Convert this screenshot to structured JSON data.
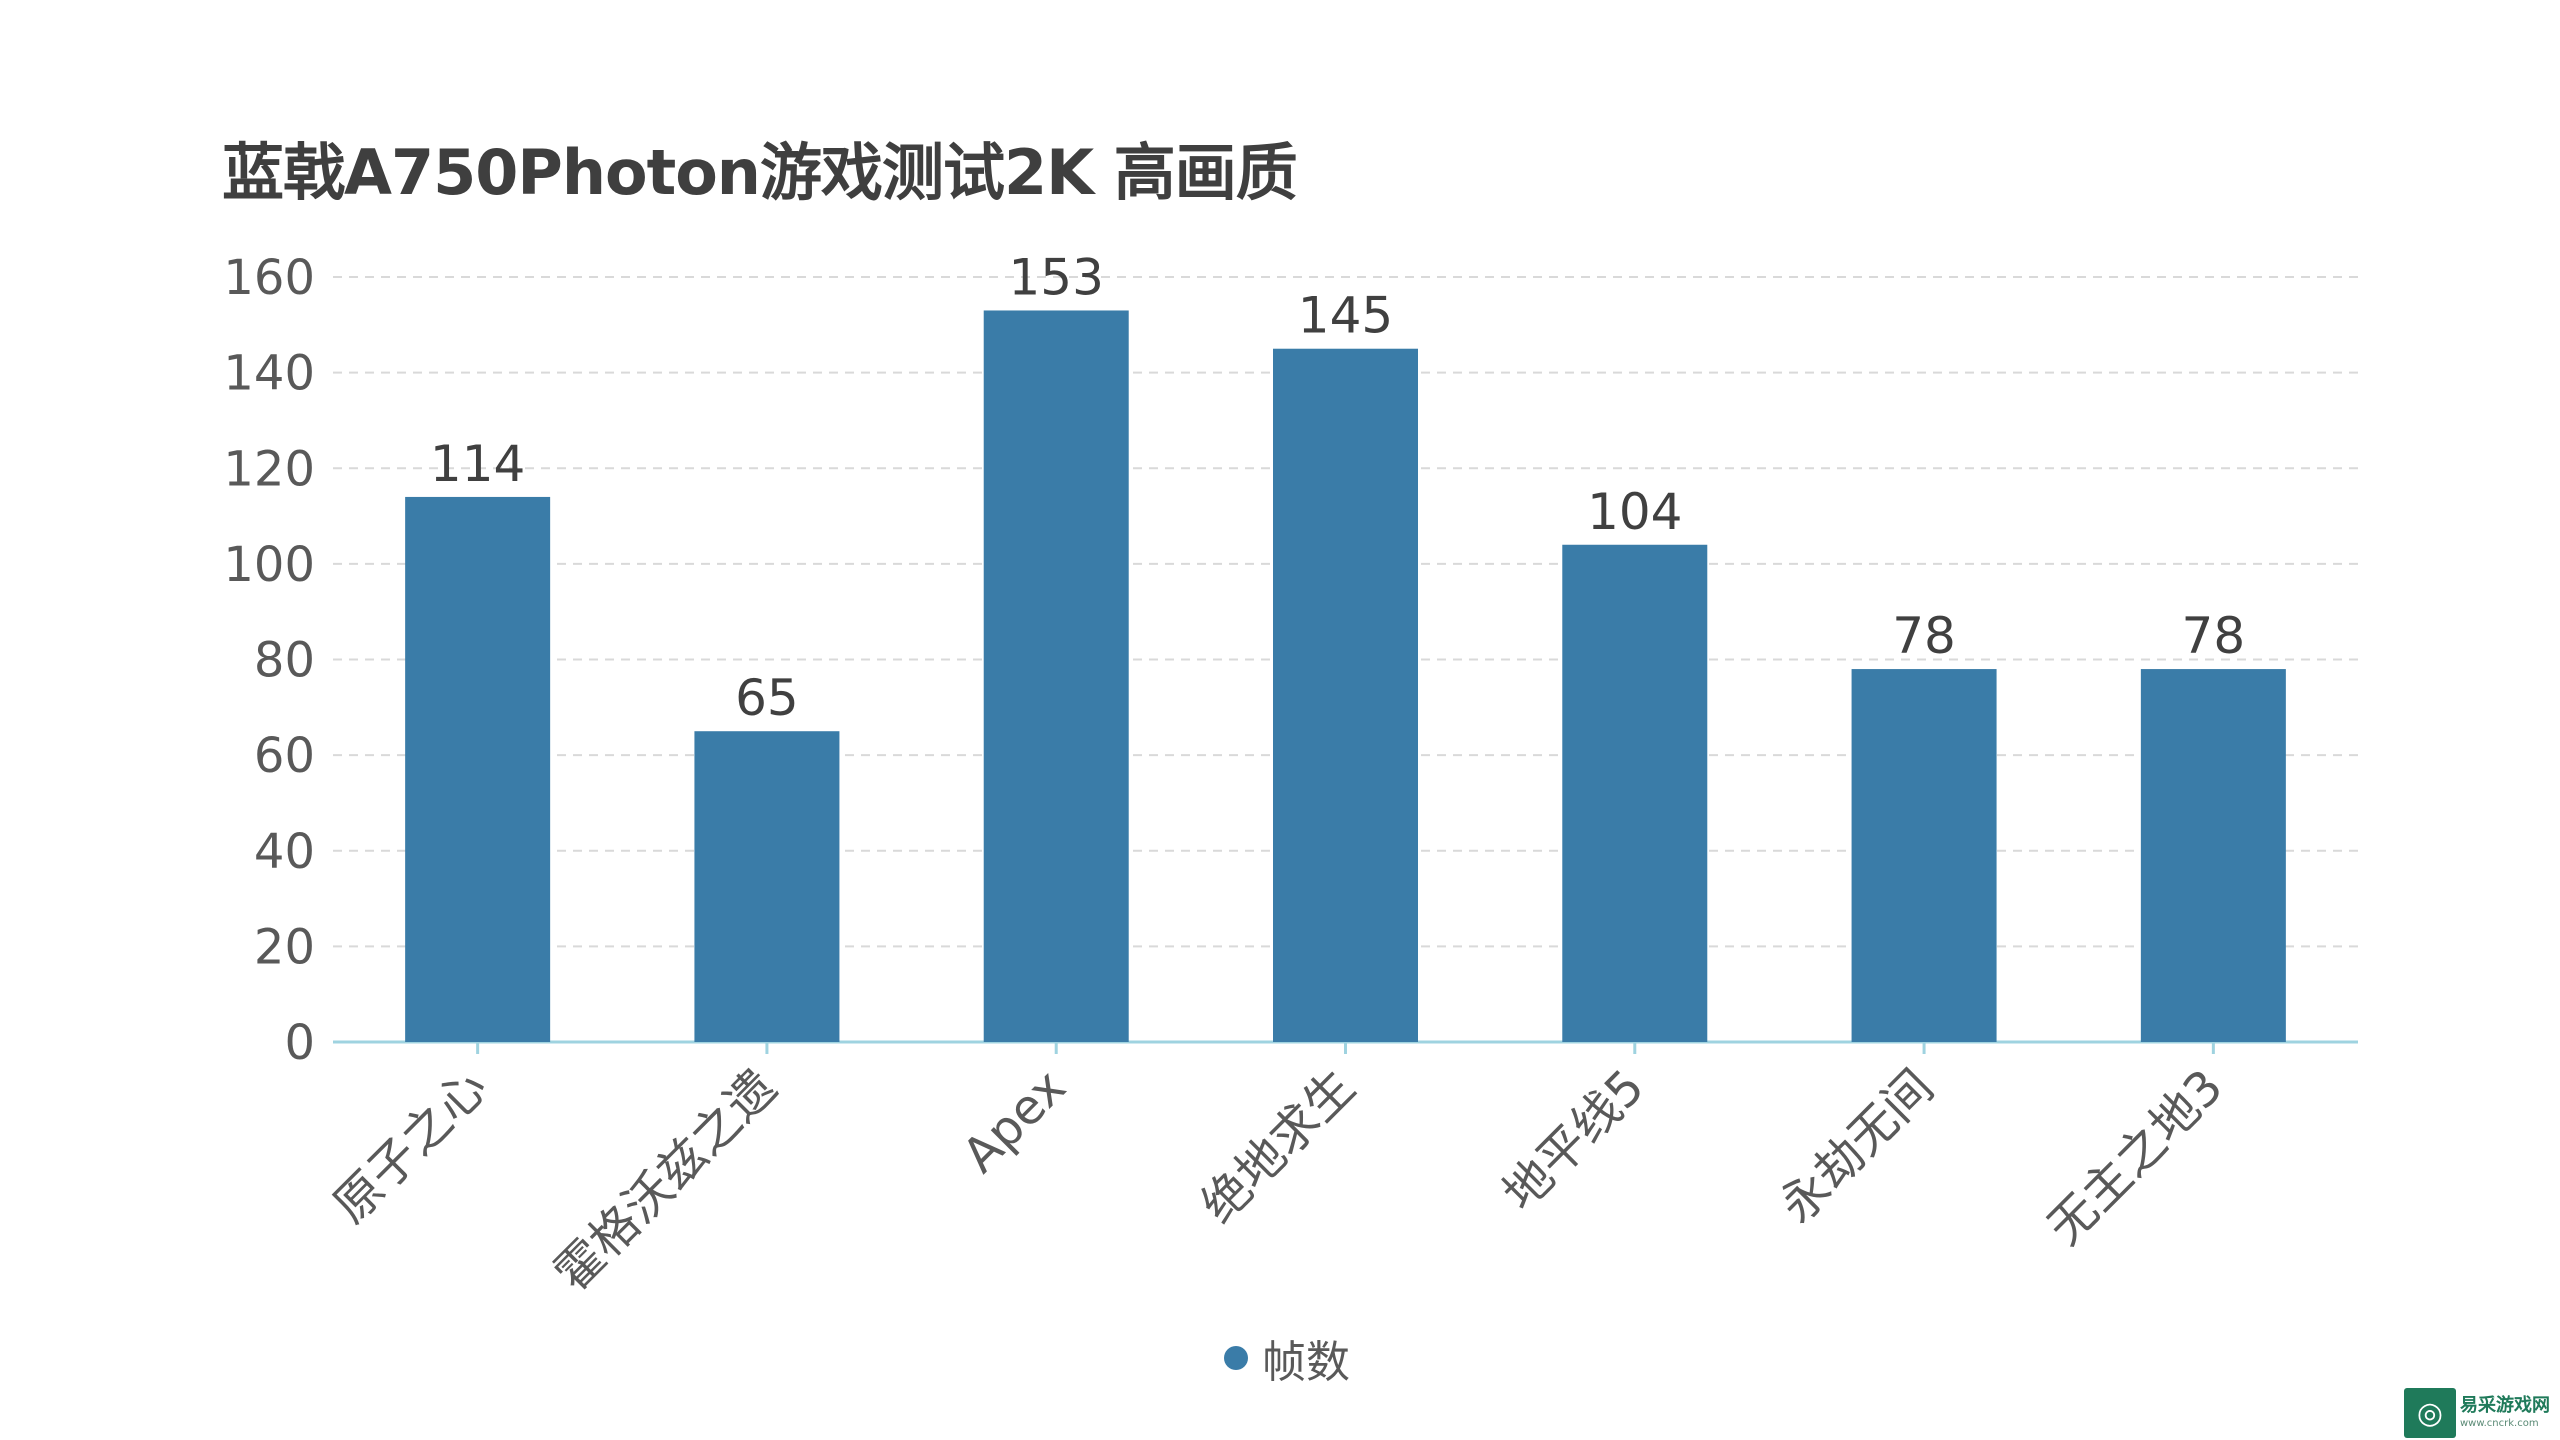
{
  "chart_data": {
    "type": "bar",
    "title": "蓝戟A750Photon游戏测试2K 高画质",
    "categories": [
      "原子之心",
      "霍格沃兹之遗",
      "Apex",
      "绝地求生",
      "地平线5",
      "永劫无间",
      "无主之地3"
    ],
    "series": [
      {
        "name": "帧数",
        "values": [
          114,
          65,
          153,
          145,
          104,
          78,
          78
        ]
      }
    ],
    "yticks": [
      "0",
      "20",
      "40",
      "60",
      "80",
      "100",
      "120",
      "140",
      "160"
    ],
    "ylim": [
      0,
      160
    ],
    "xlabel": "",
    "ylabel": "",
    "grid": true,
    "legend_position": "bottom-center",
    "bar_color": "#3a7ca8",
    "axis_color": "#9fd3e0",
    "grid_color": "#d9d9d9"
  },
  "watermark": {
    "icon": "game-controller-icon",
    "name": "易采游戏网",
    "url": "www.cncrk.com"
  }
}
